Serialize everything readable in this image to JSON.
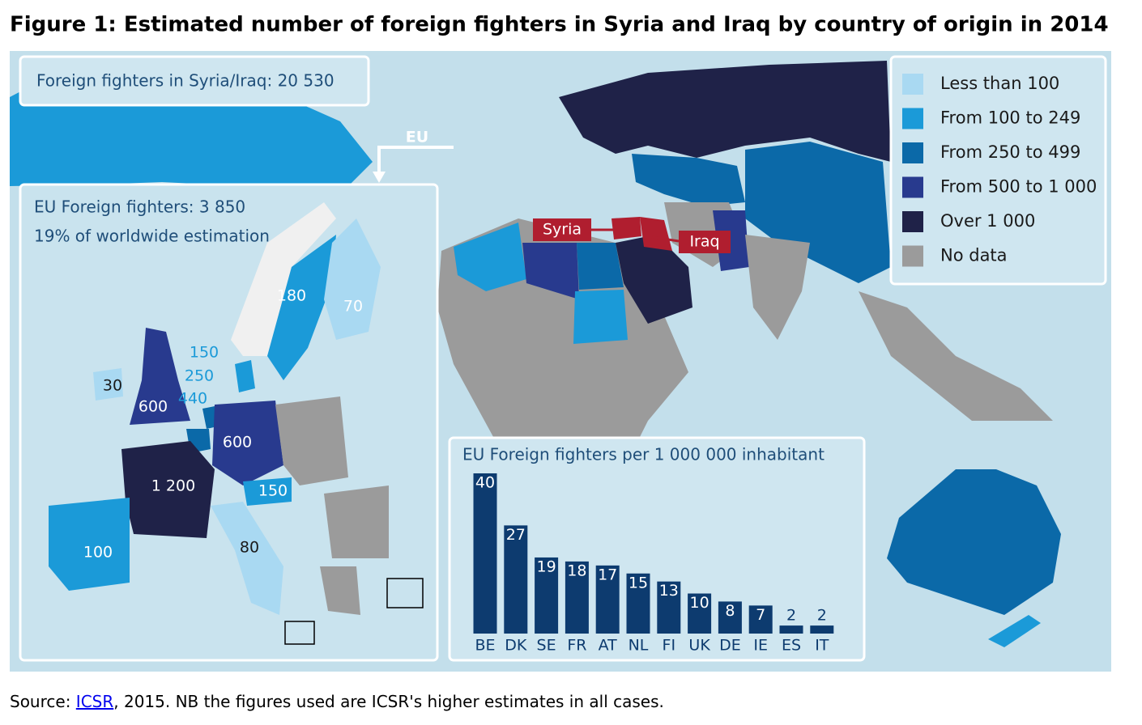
{
  "title": "Figure 1: Estimated number of foreign fighters in Syria and Iraq by country of origin in 2014",
  "total_box": "Foreign fighters in Syria/Iraq: 20 530",
  "eu_arrow_label": "EU",
  "eu_box": {
    "line1": "EU Foreign fighters: 3 850",
    "line2": "19% of worldwide estimation"
  },
  "legend": [
    {
      "label": "Less than 100",
      "color": "#a9d9f2"
    },
    {
      "label": "From 100 to 249",
      "color": "#1b9ad8"
    },
    {
      "label": "From 250 to 499",
      "color": "#0b69a8"
    },
    {
      "label": "From 500 to 1 000",
      "color": "#283a8e"
    },
    {
      "label": "Over 1 000",
      "color": "#1f2248"
    },
    {
      "label": "No data",
      "color": "#9b9b9b"
    }
  ],
  "map_labels": [
    "180",
    "70",
    "150",
    "250",
    "440",
    "30",
    "600",
    "600",
    "1 200",
    "150",
    "100",
    "80"
  ],
  "target_labels": [
    "Syria",
    "Iraq"
  ],
  "bar_chart": {
    "type": "bar",
    "title": "EU Foreign fighters per 1 000 000 inhabitant",
    "categories": [
      "BE",
      "DK",
      "SE",
      "FR",
      "AT",
      "NL",
      "FI",
      "UK",
      "DE",
      "IE",
      "ES",
      "IT"
    ],
    "values": [
      40,
      27,
      19,
      18,
      17,
      15,
      13,
      10,
      8,
      7,
      2,
      2
    ],
    "color": "#0d3b6f"
  },
  "source": {
    "prefix": "Source: ",
    "link": "ICSR",
    "rest": ", 2015. NB the figures used are ICSR's higher estimates in all cases."
  }
}
